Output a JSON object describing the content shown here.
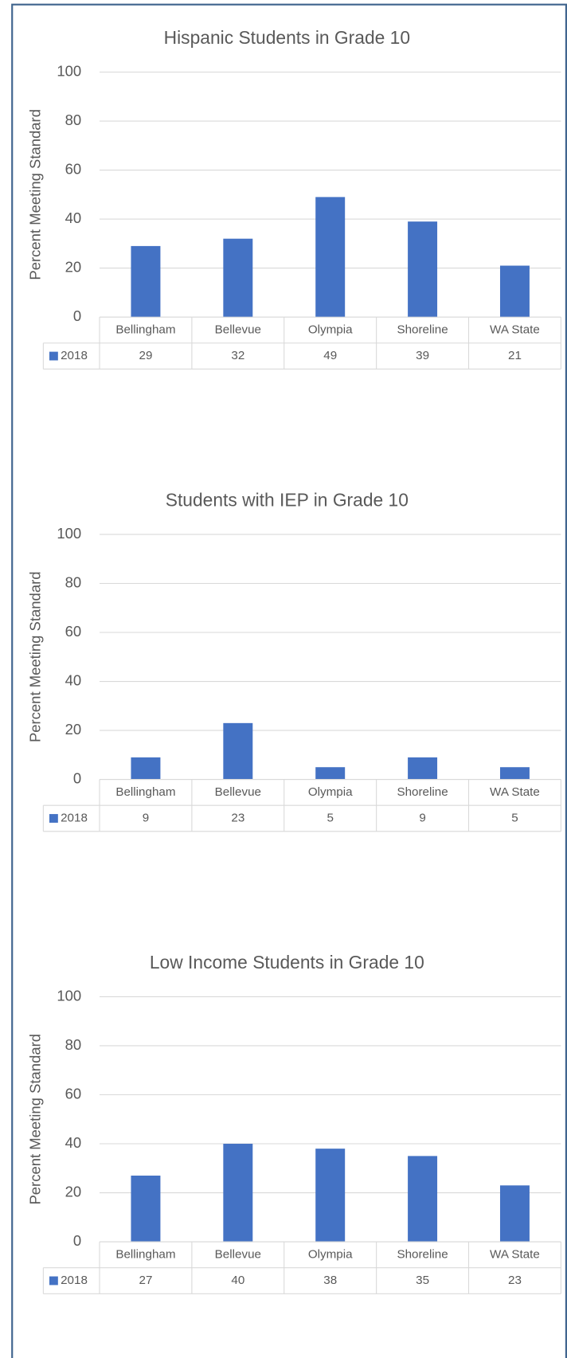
{
  "chart_data": [
    {
      "type": "bar",
      "title": "Hispanic Students in Grade 10",
      "y_label": "Percent Meeting Standard",
      "categories": [
        "Bellingham",
        "Bellevue",
        "Olympia",
        "Shoreline",
        "WA State"
      ],
      "series": [
        {
          "name": "2018",
          "color": "#4472c4",
          "values": [
            29,
            32,
            49,
            39,
            21
          ]
        }
      ],
      "ylim": [
        0,
        100
      ],
      "yticks": [
        0,
        20,
        40,
        60,
        80,
        100
      ],
      "grid": true
    },
    {
      "type": "bar",
      "title": "Students with IEP in Grade 10",
      "y_label": "Percent Meeting Standard",
      "categories": [
        "Bellingham",
        "Bellevue",
        "Olympia",
        "Shoreline",
        "WA State"
      ],
      "series": [
        {
          "name": "2018",
          "color": "#4472c4",
          "values": [
            9,
            23,
            5,
            9,
            5
          ]
        }
      ],
      "ylim": [
        0,
        100
      ],
      "yticks": [
        0,
        20,
        40,
        60,
        80,
        100
      ],
      "grid": true
    },
    {
      "type": "bar",
      "title": "Low Income Students in Grade 10",
      "y_label": "Percent Meeting Standard",
      "categories": [
        "Bellingham",
        "Bellevue",
        "Olympia",
        "Shoreline",
        "WA State"
      ],
      "series": [
        {
          "name": "2018",
          "color": "#4472c4",
          "values": [
            27,
            40,
            38,
            35,
            23
          ]
        }
      ],
      "ylim": [
        0,
        100
      ],
      "yticks": [
        0,
        20,
        40,
        60,
        80,
        100
      ],
      "grid": true
    }
  ]
}
